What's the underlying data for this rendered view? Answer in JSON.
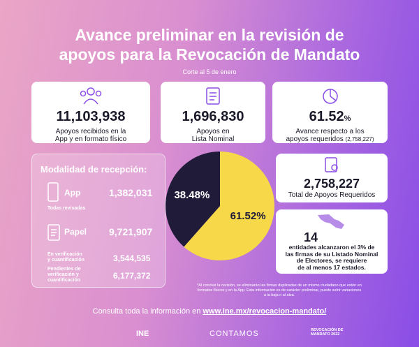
{
  "header": {
    "title_lines": [
      "Avance preliminar en la revisión de",
      "apoyos para la Revocación de Mandato"
    ],
    "subtitle": "Corte al 5 de enero"
  },
  "cards": [
    {
      "number": "11,103,938",
      "text_lines": [
        "Apoyos recibidos en la",
        "App y en formato físico"
      ]
    },
    {
      "number": "1,696,830",
      "text_lines": [
        "Apoyos en",
        "Lista Nominal"
      ]
    },
    {
      "number": "61.52",
      "unit": "%",
      "text_lines": [
        "Avance respecto a los",
        "apoyos requeridos"
      ],
      "note": "(2,758,227)"
    }
  ],
  "reception": {
    "title": "Modalidad de recepción:",
    "app": {
      "label": "App",
      "value": "1,382,031",
      "note": "Todas revisadas"
    },
    "paper": {
      "label": "Papel",
      "value": "9,721,907"
    },
    "rows": [
      {
        "label_lines": [
          "En verificación",
          "y cuantificación"
        ],
        "value": "3,544,535"
      },
      {
        "label_lines": [
          "Pendientes de",
          "verificación y",
          "cuantificación"
        ],
        "value": "6,177,372"
      }
    ]
  },
  "pie": {
    "type": "pie",
    "values": [
      61.52,
      38.48
    ],
    "value_labels": [
      "61.52%",
      "38.48%"
    ],
    "colors": [
      "#f6d848",
      "#1f1b38"
    ]
  },
  "required": {
    "number": "2,758,227",
    "text": "Total de Apoyos Requeridos"
  },
  "states": {
    "number": "14",
    "text_lines": [
      "entidades alcanzaron el 3% de",
      "las firmas de su Listado Nominal",
      "de Electores, se requiere",
      "de al menos 17 estados."
    ]
  },
  "footnote_lines": [
    "*Al concluir la revisión, se eliminarán las firmas duplicadas de un mismo ciudadano que estén en",
    "formatos físicos y en la App. Esta información es de carácter preliminar, puede sufrir variaciones",
    "a la baja o al alza."
  ],
  "footer": {
    "prefix": "Consulta toda la información en",
    "url": "www.ine.mx/revocacion-mandato/"
  },
  "logos": [
    "INE",
    "CONTAMOS",
    "REVOCACIÓN DE MANDATO 2022"
  ]
}
